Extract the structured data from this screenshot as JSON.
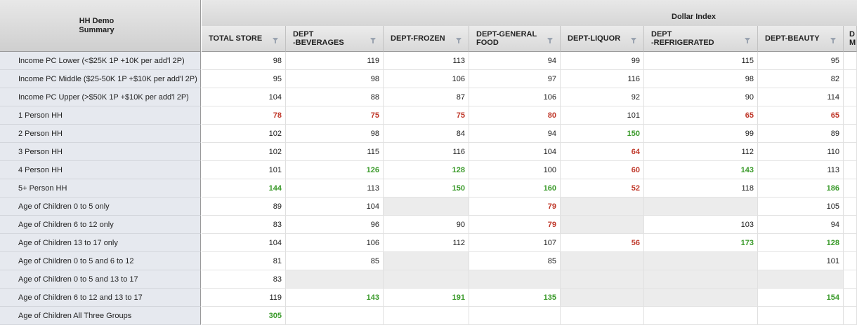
{
  "corner": {
    "line1": "HH Demo",
    "line2": "Summary"
  },
  "group_label": "Dollar Index",
  "columns": [
    {
      "label": "TOTAL STORE",
      "filter_icon": "filter-icon"
    },
    {
      "label": "DEPT\n-BEVERAGES",
      "filter_icon": "filter-icon"
    },
    {
      "label": "DEPT-FROZEN",
      "filter_icon": "filter-icon"
    },
    {
      "label": "DEPT-GENERAL\nFOOD",
      "filter_icon": "filter-icon"
    },
    {
      "label": "DEPT-LIQUOR",
      "filter_icon": "filter-icon"
    },
    {
      "label": "DEPT\n-REFRIGERATED",
      "filter_icon": "filter-icon"
    },
    {
      "label": "DEPT-BEAUTY",
      "filter_icon": "filter-icon"
    },
    {
      "label": "D\nM",
      "filter_icon": ""
    }
  ],
  "colors": {
    "low": "#c0392b",
    "high": "#3a9a2a"
  },
  "rows": [
    {
      "label": "Income PC Lower (<$25K 1P +10K per add'l 2P)",
      "cells": [
        [
          "98",
          ""
        ],
        [
          "119",
          ""
        ],
        [
          "113",
          ""
        ],
        [
          "94",
          ""
        ],
        [
          "99",
          ""
        ],
        [
          "115",
          ""
        ],
        [
          "95",
          ""
        ],
        [
          "",
          ""
        ]
      ]
    },
    {
      "label": "Income PC Middle ($25-50K 1P +$10K per add'l 2P)",
      "cells": [
        [
          "95",
          ""
        ],
        [
          "98",
          ""
        ],
        [
          "106",
          ""
        ],
        [
          "97",
          ""
        ],
        [
          "116",
          ""
        ],
        [
          "98",
          ""
        ],
        [
          "82",
          ""
        ],
        [
          "",
          ""
        ]
      ]
    },
    {
      "label": "Income PC Upper (>$50K 1P +$10K per add'l 2P)",
      "cells": [
        [
          "104",
          ""
        ],
        [
          "88",
          ""
        ],
        [
          "87",
          ""
        ],
        [
          "106",
          ""
        ],
        [
          "92",
          ""
        ],
        [
          "90",
          ""
        ],
        [
          "114",
          ""
        ],
        [
          "",
          ""
        ]
      ]
    },
    {
      "label": "1 Person HH",
      "cells": [
        [
          "78",
          "red"
        ],
        [
          "75",
          "red"
        ],
        [
          "75",
          "red"
        ],
        [
          "80",
          "red"
        ],
        [
          "101",
          ""
        ],
        [
          "65",
          "red"
        ],
        [
          "65",
          "red"
        ],
        [
          "",
          ""
        ]
      ]
    },
    {
      "label": "2 Person HH",
      "cells": [
        [
          "102",
          ""
        ],
        [
          "98",
          ""
        ],
        [
          "84",
          ""
        ],
        [
          "94",
          ""
        ],
        [
          "150",
          "green"
        ],
        [
          "99",
          ""
        ],
        [
          "89",
          ""
        ],
        [
          "",
          ""
        ]
      ]
    },
    {
      "label": "3 Person HH",
      "cells": [
        [
          "102",
          ""
        ],
        [
          "115",
          ""
        ],
        [
          "116",
          ""
        ],
        [
          "104",
          ""
        ],
        [
          "64",
          "red"
        ],
        [
          "112",
          ""
        ],
        [
          "110",
          ""
        ],
        [
          "",
          ""
        ]
      ]
    },
    {
      "label": "4 Person HH",
      "cells": [
        [
          "101",
          ""
        ],
        [
          "126",
          "green"
        ],
        [
          "128",
          "green"
        ],
        [
          "100",
          ""
        ],
        [
          "60",
          "red"
        ],
        [
          "143",
          "green"
        ],
        [
          "113",
          ""
        ],
        [
          "",
          ""
        ]
      ]
    },
    {
      "label": "5+ Person HH",
      "cells": [
        [
          "144",
          "green"
        ],
        [
          "113",
          ""
        ],
        [
          "150",
          "green"
        ],
        [
          "160",
          "green"
        ],
        [
          "52",
          "red"
        ],
        [
          "118",
          ""
        ],
        [
          "186",
          "green"
        ],
        [
          "",
          ""
        ]
      ]
    },
    {
      "label": "Age of Children 0 to 5 only",
      "cells": [
        [
          "89",
          ""
        ],
        [
          "104",
          ""
        ],
        [
          "",
          "grey"
        ],
        [
          "79",
          "red"
        ],
        [
          "",
          "grey"
        ],
        [
          "",
          "grey"
        ],
        [
          "105",
          ""
        ],
        [
          "",
          ""
        ]
      ]
    },
    {
      "label": "Age of Children 6 to 12 only",
      "cells": [
        [
          "83",
          ""
        ],
        [
          "96",
          ""
        ],
        [
          "90",
          ""
        ],
        [
          "79",
          "red"
        ],
        [
          "",
          "grey"
        ],
        [
          "103",
          ""
        ],
        [
          "94",
          ""
        ],
        [
          "",
          ""
        ]
      ]
    },
    {
      "label": "Age of Children 13 to 17 only",
      "cells": [
        [
          "104",
          ""
        ],
        [
          "106",
          ""
        ],
        [
          "112",
          ""
        ],
        [
          "107",
          ""
        ],
        [
          "56",
          "red"
        ],
        [
          "173",
          "green"
        ],
        [
          "128",
          "green"
        ],
        [
          "",
          ""
        ]
      ]
    },
    {
      "label": "Age of Children 0 to 5 and 6 to 12",
      "cells": [
        [
          "81",
          ""
        ],
        [
          "85",
          ""
        ],
        [
          "",
          "grey"
        ],
        [
          "85",
          ""
        ],
        [
          "",
          "grey"
        ],
        [
          "",
          "grey"
        ],
        [
          "101",
          ""
        ],
        [
          "",
          ""
        ]
      ]
    },
    {
      "label": "Age of Children 0 to 5 and 13 to 17",
      "cells": [
        [
          "83",
          ""
        ],
        [
          "",
          "grey"
        ],
        [
          "",
          "grey"
        ],
        [
          "",
          "grey"
        ],
        [
          "",
          "grey"
        ],
        [
          "",
          "grey"
        ],
        [
          "",
          "grey"
        ],
        [
          "",
          ""
        ]
      ]
    },
    {
      "label": "Age of Children 6 to 12 and 13 to 17",
      "cells": [
        [
          "119",
          ""
        ],
        [
          "143",
          "green"
        ],
        [
          "191",
          "green"
        ],
        [
          "135",
          "green"
        ],
        [
          "",
          "grey"
        ],
        [
          "",
          "grey"
        ],
        [
          "154",
          "green"
        ],
        [
          "",
          ""
        ]
      ]
    },
    {
      "label": "Age of Children All Three Groups",
      "cells": [
        [
          "305",
          "green"
        ],
        [
          "",
          ""
        ],
        [
          "",
          ""
        ],
        [
          "",
          ""
        ],
        [
          "",
          ""
        ],
        [
          "",
          ""
        ],
        [
          "",
          ""
        ],
        [
          "",
          ""
        ]
      ]
    }
  ]
}
